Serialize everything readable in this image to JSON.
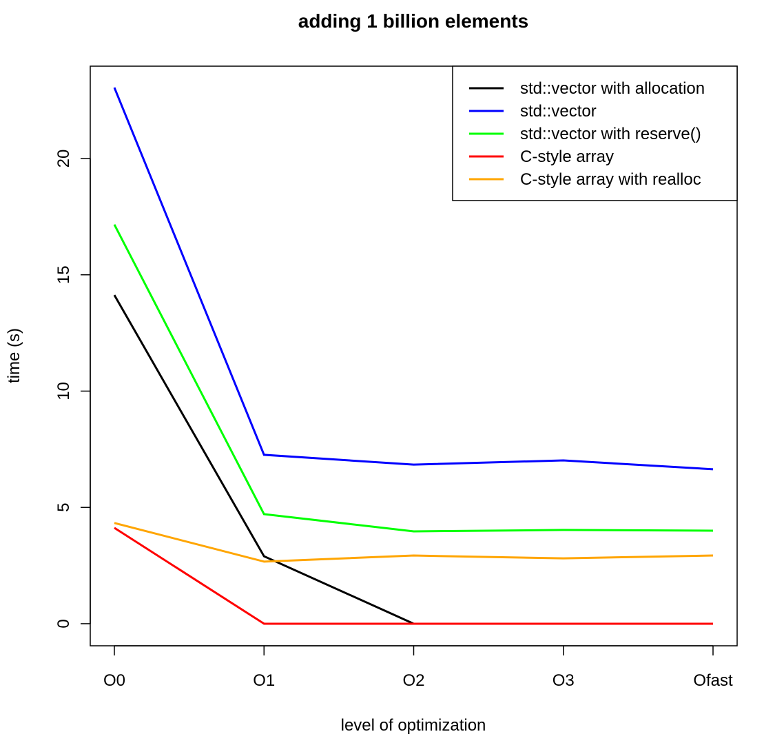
{
  "chart_data": {
    "type": "line",
    "title": "adding 1 billion elements",
    "xlabel": "level of optimization",
    "ylabel": "time (s)",
    "categories": [
      "O0",
      "O1",
      "O2",
      "O3",
      "Ofast"
    ],
    "ylim": [
      -0.95,
      23.97
    ],
    "yticks": [
      0,
      5,
      10,
      15,
      20
    ],
    "grid": false,
    "legend_position": "top-right",
    "series": [
      {
        "name": "std::vector with allocation",
        "color": "#000000",
        "values": [
          14.13,
          2.9,
          0,
          0,
          0
        ]
      },
      {
        "name": "std::vector",
        "color": "#0000ff",
        "values": [
          23.05,
          7.26,
          6.84,
          7.02,
          6.64
        ]
      },
      {
        "name": "std::vector with reserve()",
        "color": "#00ff00",
        "values": [
          17.16,
          4.71,
          3.97,
          4.03,
          4.0
        ]
      },
      {
        "name": "C-style array",
        "color": "#ff0000",
        "values": [
          4.12,
          0,
          0,
          0,
          0
        ]
      },
      {
        "name": "C-style array with realloc",
        "color": "#ffa500",
        "values": [
          4.33,
          2.67,
          2.93,
          2.81,
          2.93
        ]
      }
    ]
  }
}
